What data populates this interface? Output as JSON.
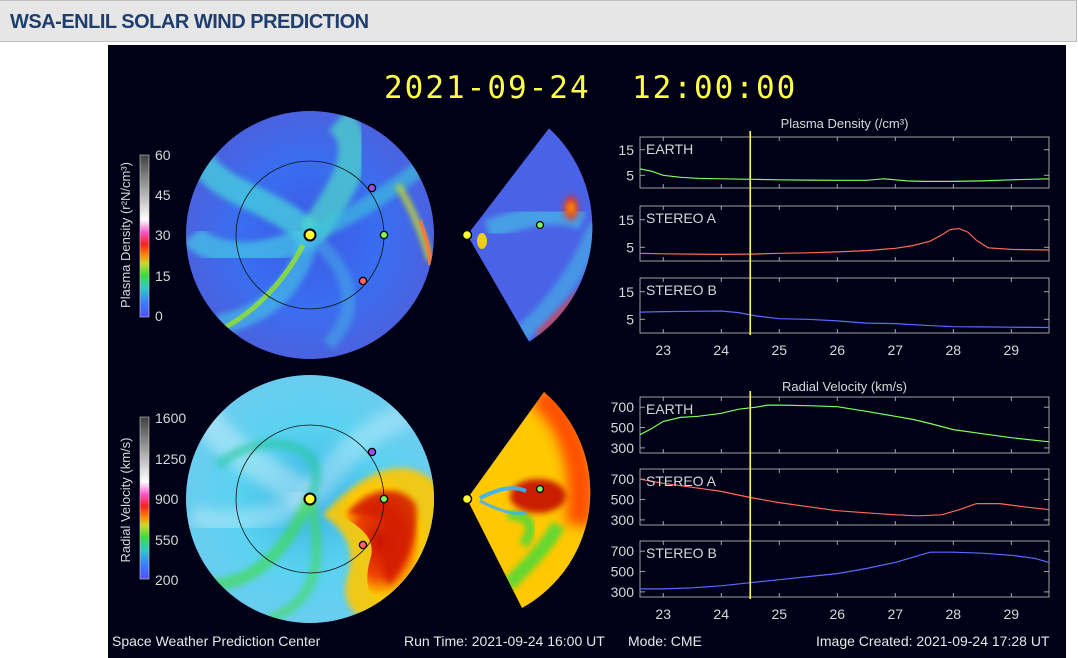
{
  "header": {
    "title": "WSA-ENLIL SOLAR WIND PREDICTION"
  },
  "datetime": "2021-09-24  12:00:00",
  "colorbars": {
    "density": {
      "label": "Plasma Density (r²N/cm³)",
      "ticks": [
        "60",
        "45",
        "30",
        "15",
        "0"
      ]
    },
    "velocity": {
      "label": "Radial Velocity (km/s)",
      "ticks": [
        "1600",
        "1250",
        "900",
        "550",
        "200"
      ]
    }
  },
  "chart_data": [
    {
      "type": "line",
      "title": "Plasma Density (/cm³)",
      "xlim": [
        22.6,
        29.65
      ],
      "x_ticks": [
        "23",
        "24",
        "25",
        "26",
        "27",
        "28",
        "29"
      ],
      "current_time_x": 24.5,
      "y_ticks": [
        "15",
        "5"
      ],
      "panels": [
        {
          "name": "EARTH",
          "color": "#7dff5a",
          "ylim": [
            0,
            20
          ],
          "x": [
            22.6,
            22.8,
            23.0,
            23.3,
            23.6,
            24.0,
            24.5,
            25.0,
            25.5,
            26.0,
            26.5,
            26.8,
            27.0,
            27.2,
            27.5,
            28.0,
            28.5,
            29.0,
            29.65
          ],
          "y": [
            7.5,
            6.6,
            5.0,
            4.2,
            3.8,
            3.6,
            3.4,
            3.2,
            3.1,
            3.0,
            3.0,
            3.6,
            3.2,
            2.8,
            2.6,
            2.6,
            2.8,
            3.2,
            3.6
          ]
        },
        {
          "name": "STEREO A",
          "color": "#ff6a5a",
          "ylim": [
            0,
            20
          ],
          "x": [
            22.6,
            23.0,
            23.5,
            24.0,
            24.5,
            25.0,
            25.5,
            26.0,
            26.5,
            27.0,
            27.3,
            27.6,
            27.8,
            27.95,
            28.1,
            28.25,
            28.4,
            28.6,
            29.0,
            29.65
          ],
          "y": [
            2.8,
            2.6,
            2.5,
            2.4,
            2.5,
            2.8,
            3.0,
            3.3,
            3.8,
            4.6,
            5.6,
            7.2,
            9.5,
            11.5,
            11.8,
            10.5,
            7.5,
            4.8,
            4.2,
            4.0
          ]
        },
        {
          "name": "STEREO B",
          "color": "#5a6aff",
          "ylim": [
            0,
            20
          ],
          "x": [
            22.6,
            23.0,
            23.5,
            24.0,
            24.3,
            24.6,
            25.0,
            25.5,
            26.0,
            26.5,
            27.0,
            27.5,
            28.0,
            28.5,
            29.0,
            29.65
          ],
          "y": [
            7.6,
            7.8,
            7.9,
            8.0,
            7.4,
            6.2,
            5.2,
            5.0,
            4.4,
            3.6,
            3.4,
            2.8,
            2.3,
            2.2,
            2.1,
            2.0
          ]
        }
      ]
    },
    {
      "type": "line",
      "title": "Radial Velocity (km/s)",
      "xlim": [
        22.6,
        29.65
      ],
      "x_ticks": [
        "23",
        "24",
        "25",
        "26",
        "27",
        "28",
        "29"
      ],
      "current_time_x": 24.5,
      "y_ticks": [
        "700",
        "500",
        "300"
      ],
      "panels": [
        {
          "name": "EARTH",
          "color": "#7dff5a",
          "ylim": [
            250,
            800
          ],
          "x": [
            22.6,
            22.8,
            23.0,
            23.3,
            23.6,
            24.0,
            24.3,
            24.6,
            24.8,
            25.0,
            25.5,
            26.0,
            26.5,
            27.0,
            27.3,
            27.6,
            28.0,
            28.5,
            29.0,
            29.65
          ],
          "y": [
            430,
            490,
            560,
            600,
            610,
            640,
            680,
            700,
            720,
            720,
            715,
            705,
            660,
            610,
            580,
            540,
            480,
            440,
            400,
            360
          ]
        },
        {
          "name": "STEREO A",
          "color": "#ff6a5a",
          "ylim": [
            250,
            800
          ],
          "x": [
            22.6,
            23.0,
            23.5,
            24.0,
            24.5,
            25.0,
            25.5,
            26.0,
            26.5,
            27.0,
            27.4,
            27.8,
            28.1,
            28.4,
            28.8,
            29.2,
            29.65
          ],
          "y": [
            700,
            660,
            620,
            580,
            520,
            470,
            430,
            390,
            370,
            350,
            340,
            350,
            400,
            460,
            460,
            430,
            400
          ]
        },
        {
          "name": "STEREO B",
          "color": "#5a6aff",
          "ylim": [
            250,
            800
          ],
          "x": [
            22.6,
            23.0,
            23.5,
            24.0,
            24.5,
            25.0,
            25.5,
            26.0,
            26.5,
            27.0,
            27.3,
            27.6,
            28.0,
            28.5,
            29.0,
            29.4,
            29.65
          ],
          "y": [
            330,
            330,
            340,
            360,
            390,
            420,
            450,
            480,
            530,
            590,
            640,
            690,
            690,
            680,
            660,
            630,
            590
          ]
        }
      ]
    }
  ],
  "footer": {
    "left": "Space Weather Prediction Center",
    "run_time": "Run Time: 2021-09-24 16:00 UT",
    "mode": "Mode: CME",
    "created": "Image Created: 2021-09-24 17:28 UT"
  },
  "colors": {
    "earth": "#7dff5a",
    "stereo_a": "#ff6a5a",
    "stereo_b": "#5a6aff",
    "time_marker": "#ffff46",
    "timestamp": "#ffff46"
  }
}
